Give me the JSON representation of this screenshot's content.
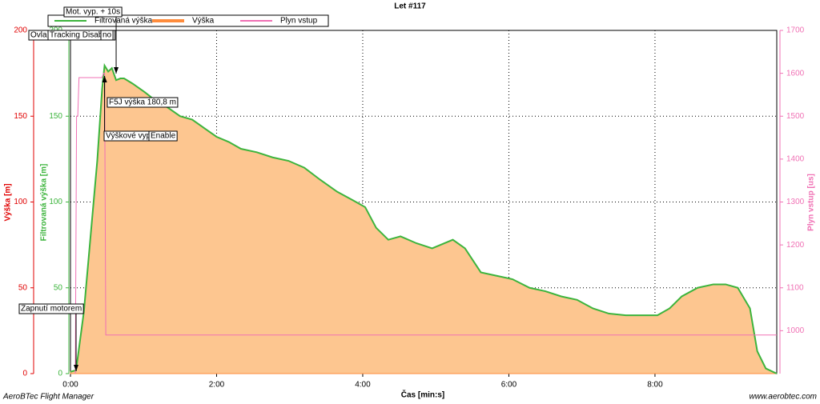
{
  "chart_data": {
    "type": "area",
    "title": "Let #117",
    "xlabel": "Čas [min:s]",
    "ylabel": "Výška [m]",
    "y3label": "Filtrovaná výška [m]",
    "y2label": "Plyn vstup [us]",
    "footer_left": "AeroBTec Flight Manager",
    "footer_right": "www.aerobtec.com",
    "xlim": [
      0,
      580
    ],
    "xticks": [
      {
        "value": 0,
        "label": "0:00"
      },
      {
        "value": 120,
        "label": "2:00"
      },
      {
        "value": 240,
        "label": "4:00"
      },
      {
        "value": 360,
        "label": "6:00"
      },
      {
        "value": 480,
        "label": "8:00"
      }
    ],
    "ylim": [
      0,
      200
    ],
    "yticks": [
      0,
      50,
      100,
      150,
      200
    ],
    "y3lim": [
      0,
      200
    ],
    "y3ticks": [
      0,
      50,
      100,
      150,
      200
    ],
    "y2lim": [
      900,
      1700
    ],
    "y2ticks": [
      1000,
      1100,
      1200,
      1300,
      1400,
      1500,
      1600,
      1700
    ],
    "grid": true,
    "series": [
      {
        "name": "Filtrovaná výška",
        "color": "#3cb43c",
        "axis": "y3",
        "x": [
          0,
          4.6,
          11,
          18,
          22,
          26,
          28,
          31,
          34,
          37.5,
          41,
          44,
          51,
          61,
          70,
          80,
          90,
          100,
          110,
          120,
          130,
          140,
          153,
          166,
          179,
          192,
          205,
          219,
          232,
          242,
          251,
          261,
          271,
          284,
          297,
          314,
          324,
          337,
          350,
          363,
          377,
          390,
          403,
          416,
          429,
          442,
          456,
          469,
          482,
          492,
          502,
          515,
          528,
          538,
          548,
          558,
          564,
          571,
          580
        ],
        "values": [
          1,
          2,
          36,
          92,
          124,
          166,
          179.5,
          176,
          178,
          171,
          172,
          172,
          169,
          164,
          159,
          155,
          150,
          148,
          143,
          138,
          135,
          131,
          129,
          126,
          124,
          120,
          113,
          106,
          101,
          97,
          85,
          78,
          80,
          76,
          73,
          78,
          73,
          59,
          57,
          55,
          50,
          48,
          45,
          43,
          38,
          35,
          34,
          34,
          34,
          38,
          45,
          50,
          52,
          52,
          50,
          38,
          13,
          3,
          0
        ]
      },
      {
        "name": "Výška",
        "color": "#ff8c3c",
        "fill": "#fdc690",
        "x": [
          0,
          4.6,
          11,
          18,
          22,
          26,
          28,
          31,
          34,
          37.5,
          41,
          44,
          51,
          61,
          70,
          80,
          90,
          100,
          110,
          120,
          130,
          140,
          153,
          166,
          179,
          192,
          205,
          219,
          232,
          242,
          251,
          261,
          271,
          284,
          297,
          314,
          324,
          337,
          350,
          363,
          377,
          390,
          403,
          416,
          429,
          442,
          456,
          469,
          482,
          492,
          502,
          515,
          528,
          538,
          548,
          558,
          564,
          571,
          580
        ],
        "values": [
          1,
          2,
          36,
          92,
          124,
          166,
          179.5,
          176,
          178,
          171,
          172,
          172,
          169,
          164,
          159,
          155,
          150,
          148,
          143,
          138,
          135,
          131,
          129,
          126,
          124,
          120,
          113,
          106,
          101,
          97,
          85,
          78,
          80,
          76,
          73,
          78,
          73,
          59,
          57,
          55,
          50,
          48,
          45,
          43,
          38,
          35,
          34,
          34,
          34,
          38,
          45,
          50,
          52,
          52,
          50,
          38,
          13,
          3,
          0
        ]
      },
      {
        "name": "Plyn vstup",
        "color": "#f070b4",
        "axis": "y2",
        "x": [
          4,
          5,
          6,
          7,
          26,
          27,
          28,
          29,
          580
        ],
        "values": [
          900,
          1500,
          1500,
          1590,
          1590,
          1600,
          1600,
          990,
          990
        ]
      }
    ],
    "annotations": [
      {
        "text": "Zapnutí motorem",
        "x": 4.6
      },
      {
        "text": "Mot. vyp. + 10s",
        "x": 37.5
      },
      {
        "text": "Ovla",
        "x": 0
      },
      {
        "text": "Tracking Disabled",
        "x": 9
      },
      {
        "text": "no",
        "x": 34
      },
      {
        "text": "F5J výška 180,8 m",
        "x": 28
      },
      {
        "text": "Výškové vyp",
        "x": 28
      },
      {
        "text": "Enable",
        "x": 37.5
      }
    ]
  }
}
